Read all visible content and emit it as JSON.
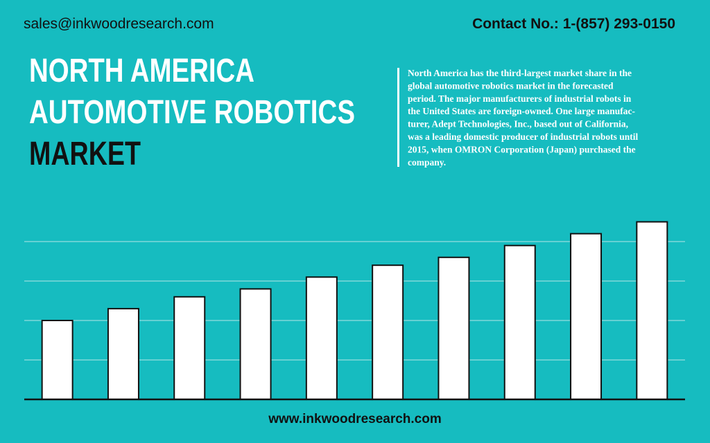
{
  "header": {
    "email": "sales@inkwoodresearch.com",
    "contact": "Contact No.: 1-(857) 293-0150"
  },
  "description": [
    "North America has the third-largest market share in the",
    "global automotive robotics market in the forecasted",
    "period.  The major manufacturers of industrial robots in",
    "the United States are foreign-owned. One large manufac-",
    "turer, Adept Technologies, Inc., based out of California,",
    "was a leading domestic producer of industrial robots until",
    "2015, when OMRON Corporation (Japan) purchased the",
    "company."
  ],
  "footer": {
    "url": "www.inkwoodresearch.com"
  },
  "chart_data": {
    "type": "bar",
    "title": [
      "NORTH AMERICA",
      "AUTOMOTIVE ROBOTICS",
      "MARKET"
    ],
    "categories": [
      null,
      null,
      null,
      null,
      null,
      null,
      null,
      null,
      null,
      null
    ],
    "values": [
      2.0,
      2.3,
      2.6,
      2.8,
      3.1,
      3.4,
      3.6,
      3.9,
      4.2,
      4.5
    ],
    "color": "#ffffff",
    "ylim": [
      0,
      5
    ],
    "yticks": [
      0,
      1,
      2,
      3,
      4
    ],
    "grid": true
  }
}
